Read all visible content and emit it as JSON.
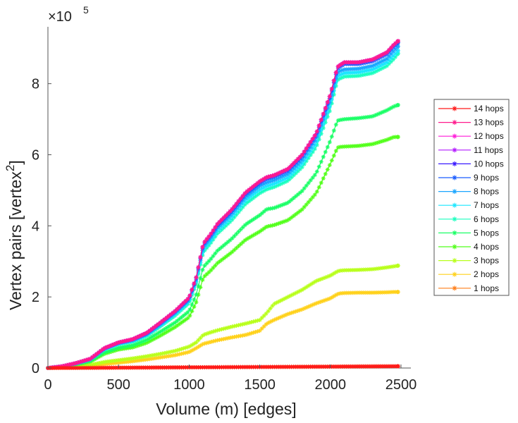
{
  "chart_data": {
    "type": "line",
    "title": "",
    "xlabel": "Volume (m) [edges]",
    "ylabel": "Vertex pairs [vertex",
    "ylabel_superscript": "2",
    "ylabel_close": "]",
    "y_exponent_prefix": "×10",
    "y_exponent": "5",
    "xlim": [
      0,
      2570
    ],
    "ylim": [
      0,
      9.6
    ],
    "xticks": [
      0,
      500,
      1000,
      1500,
      2000,
      2500
    ],
    "xtick_labels": [
      "0",
      "500",
      "1000",
      "1500",
      "2000",
      "2500"
    ],
    "yticks": [
      0,
      2,
      4,
      6,
      8
    ],
    "ytick_labels": [
      "0",
      "2",
      "4",
      "6",
      "8"
    ],
    "y_units": "×10^5 vertex pairs",
    "legend_position": "right",
    "x": [
      0,
      100,
      200,
      300,
      400,
      500,
      600,
      700,
      800,
      900,
      1000,
      1050,
      1100,
      1150,
      1200,
      1300,
      1400,
      1500,
      1550,
      1600,
      1700,
      1800,
      1900,
      2000,
      2050,
      2070,
      2100,
      2200,
      2300,
      2400,
      2450,
      2480
    ],
    "series": [
      {
        "name": "14 hops",
        "color": "#ff1a1a",
        "values": [
          0,
          0.002,
          0.003,
          0.005,
          0.007,
          0.009,
          0.011,
          0.013,
          0.015,
          0.017,
          0.019,
          0.02,
          0.021,
          0.022,
          0.023,
          0.025,
          0.027,
          0.029,
          0.03,
          0.031,
          0.033,
          0.035,
          0.037,
          0.039,
          0.04,
          0.041,
          0.042,
          0.044,
          0.046,
          0.048,
          0.049,
          0.05
        ]
      },
      {
        "name": "13 hops",
        "color": "#ff1a8c",
        "values": [
          0,
          0.05,
          0.14,
          0.26,
          0.56,
          0.72,
          0.81,
          0.99,
          1.29,
          1.6,
          1.98,
          2.55,
          3.5,
          3.75,
          4.05,
          4.45,
          4.94,
          5.25,
          5.37,
          5.42,
          5.6,
          6.0,
          6.6,
          7.7,
          8.47,
          8.53,
          8.6,
          8.6,
          8.68,
          8.88,
          9.1,
          9.2
        ]
      },
      {
        "name": "12 hops",
        "color": "#ff1ad9",
        "values": [
          0,
          0.05,
          0.14,
          0.26,
          0.56,
          0.72,
          0.81,
          0.99,
          1.29,
          1.6,
          1.98,
          2.55,
          3.5,
          3.75,
          4.05,
          4.45,
          4.94,
          5.25,
          5.37,
          5.42,
          5.6,
          6.0,
          6.6,
          7.7,
          8.47,
          8.53,
          8.6,
          8.6,
          8.68,
          8.88,
          9.1,
          9.2
        ]
      },
      {
        "name": "11 hops",
        "color": "#b31aff",
        "values": [
          0,
          0.05,
          0.14,
          0.26,
          0.56,
          0.72,
          0.81,
          0.99,
          1.29,
          1.6,
          1.98,
          2.55,
          3.5,
          3.75,
          4.05,
          4.45,
          4.94,
          5.25,
          5.37,
          5.42,
          5.6,
          6.0,
          6.6,
          7.7,
          8.47,
          8.53,
          8.6,
          8.6,
          8.68,
          8.88,
          9.1,
          9.2
        ]
      },
      {
        "name": "10 hops",
        "color": "#3a1aff",
        "values": [
          0,
          0.05,
          0.14,
          0.26,
          0.56,
          0.72,
          0.81,
          0.99,
          1.29,
          1.6,
          1.98,
          2.55,
          3.5,
          3.75,
          4.05,
          4.45,
          4.94,
          5.25,
          5.37,
          5.42,
          5.6,
          6.0,
          6.6,
          7.7,
          8.47,
          8.53,
          8.6,
          8.6,
          8.68,
          8.88,
          9.1,
          9.2
        ]
      },
      {
        "name": "9 hops",
        "color": "#1a5cff",
        "values": [
          0,
          0.05,
          0.14,
          0.25,
          0.55,
          0.71,
          0.8,
          0.97,
          1.27,
          1.58,
          1.95,
          2.52,
          3.46,
          3.71,
          4.0,
          4.4,
          4.89,
          5.2,
          5.32,
          5.37,
          5.55,
          5.95,
          6.55,
          7.64,
          8.42,
          8.48,
          8.55,
          8.55,
          8.63,
          8.83,
          9.05,
          9.15
        ]
      },
      {
        "name": "8 hops",
        "color": "#1aa6ff",
        "values": [
          0,
          0.05,
          0.13,
          0.25,
          0.54,
          0.7,
          0.78,
          0.95,
          1.24,
          1.55,
          1.92,
          2.48,
          3.4,
          3.65,
          3.94,
          4.33,
          4.81,
          5.12,
          5.22,
          5.28,
          5.46,
          5.85,
          6.45,
          7.52,
          8.3,
          8.36,
          8.4,
          8.42,
          8.5,
          8.7,
          8.93,
          9.05
        ]
      },
      {
        "name": "7 hops",
        "color": "#1ae6ff",
        "values": [
          0,
          0.05,
          0.13,
          0.24,
          0.53,
          0.68,
          0.76,
          0.93,
          1.21,
          1.51,
          1.88,
          2.43,
          3.33,
          3.57,
          3.86,
          4.24,
          4.72,
          5.02,
          5.12,
          5.18,
          5.36,
          5.75,
          6.33,
          7.4,
          8.2,
          8.25,
          8.3,
          8.32,
          8.4,
          8.6,
          8.8,
          8.93
        ]
      },
      {
        "name": "6 hops",
        "color": "#1affbf",
        "values": [
          0,
          0.05,
          0.13,
          0.24,
          0.52,
          0.67,
          0.74,
          0.9,
          1.18,
          1.47,
          1.83,
          2.38,
          3.26,
          3.5,
          3.78,
          4.15,
          4.62,
          4.92,
          5.03,
          5.09,
          5.27,
          5.65,
          6.22,
          7.28,
          8.1,
          8.15,
          8.2,
          8.22,
          8.3,
          8.5,
          8.7,
          8.85
        ]
      },
      {
        "name": "5 hops",
        "color": "#1aff66",
        "values": [
          0,
          0.04,
          0.11,
          0.2,
          0.44,
          0.57,
          0.64,
          0.79,
          1.03,
          1.28,
          1.6,
          2.07,
          2.84,
          3.05,
          3.3,
          3.63,
          4.04,
          4.3,
          4.47,
          4.5,
          4.65,
          4.98,
          5.48,
          6.4,
          6.96,
          6.98,
          7.0,
          7.03,
          7.08,
          7.25,
          7.36,
          7.4
        ]
      },
      {
        "name": "4 hops",
        "color": "#52ff1a",
        "values": [
          0,
          0.04,
          0.1,
          0.18,
          0.4,
          0.52,
          0.58,
          0.71,
          0.92,
          1.15,
          1.43,
          1.85,
          2.55,
          2.73,
          2.95,
          3.25,
          3.61,
          3.84,
          3.98,
          4.02,
          4.16,
          4.46,
          4.92,
          5.75,
          6.2,
          6.22,
          6.23,
          6.25,
          6.3,
          6.42,
          6.5,
          6.5
        ]
      },
      {
        "name": "3 hops",
        "color": "#b8ff1a",
        "values": [
          0,
          0.02,
          0.05,
          0.09,
          0.17,
          0.22,
          0.27,
          0.33,
          0.4,
          0.48,
          0.6,
          0.72,
          0.93,
          1.0,
          1.06,
          1.16,
          1.25,
          1.35,
          1.55,
          1.8,
          2.0,
          2.2,
          2.45,
          2.6,
          2.72,
          2.74,
          2.75,
          2.76,
          2.78,
          2.83,
          2.86,
          2.88
        ]
      },
      {
        "name": "2 hops",
        "color": "#ffd11a",
        "values": [
          0,
          0.01,
          0.03,
          0.06,
          0.11,
          0.15,
          0.19,
          0.24,
          0.3,
          0.36,
          0.45,
          0.56,
          0.68,
          0.73,
          0.78,
          0.86,
          0.93,
          1.05,
          1.25,
          1.35,
          1.52,
          1.65,
          1.82,
          1.96,
          2.08,
          2.1,
          2.11,
          2.12,
          2.12,
          2.13,
          2.14,
          2.14
        ]
      },
      {
        "name": "1 hops",
        "color": "#ff7f1a",
        "values": [
          0,
          0.002,
          0.003,
          0.005,
          0.007,
          0.009,
          0.011,
          0.013,
          0.015,
          0.017,
          0.019,
          0.02,
          0.021,
          0.022,
          0.023,
          0.025,
          0.027,
          0.029,
          0.03,
          0.031,
          0.033,
          0.035,
          0.037,
          0.039,
          0.04,
          0.041,
          0.042,
          0.044,
          0.046,
          0.048,
          0.049,
          0.05
        ]
      }
    ]
  }
}
